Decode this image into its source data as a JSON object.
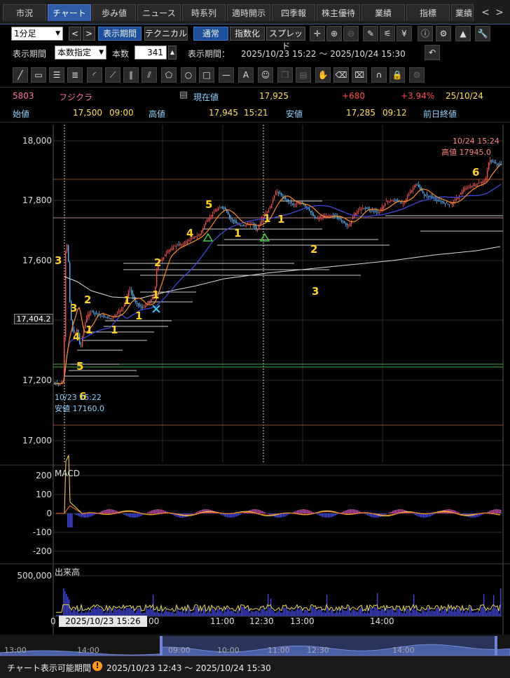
{
  "tabs": [
    "市況",
    "チャート",
    "歩み値",
    "ニュース",
    "時系列",
    "適時開示",
    "四季報",
    "株主優待",
    "業績",
    "指標",
    "業績"
  ],
  "tab_nav": {
    "prev": "<",
    "next": ">"
  },
  "toolbar": {
    "interval": "1分足",
    "prev": "<",
    "next": ">",
    "display_period_btn": "表示期間",
    "technical_btn": "テクニカル",
    "normal_btn": "通常",
    "index_btn": "指数化",
    "spread_btn": "スプレッド"
  },
  "period_row": {
    "label": "表示期間",
    "mode": "本数指定",
    "count_label": "本数",
    "count": "341",
    "range_label": "表示期間：",
    "range": "2025/10/23 15:22 ～ 2025/10/24 15:30"
  },
  "quote": {
    "code": "5803",
    "name": "フジクラ",
    "current_label": "現在値",
    "current": "17,925",
    "change": "+680",
    "change_pct": "+3.94%",
    "date": "25/10/24",
    "open_label": "始値",
    "open": "17,500",
    "open_time": "09:00",
    "high_label": "高値",
    "high": "17,945",
    "high_time": "15:21",
    "low_label": "安値",
    "low": "17,285",
    "low_time": "09:12",
    "prev_close_label": "前日終値"
  },
  "price_axis": [
    "18,000",
    "17,800",
    "17,600",
    "17,404.2",
    "17,200",
    "17,000"
  ],
  "annotations": {
    "high_time": "10/24 15:24",
    "high_text": "高値 17945.0",
    "low_time": "10/23 15:22",
    "low_text": "安値 17160.0"
  },
  "count_labels": [
    "3",
    "3",
    "2",
    "4",
    "1",
    "1",
    "1",
    "1",
    "1",
    "5",
    "6",
    "2",
    "4",
    "5",
    "1",
    "1",
    "1",
    "2",
    "3",
    "6"
  ],
  "macd": {
    "title": "MACD",
    "axis": [
      "200",
      "100",
      "0",
      "-100",
      "-200"
    ]
  },
  "volume": {
    "title": "出来高",
    "axis": [
      "500,000"
    ]
  },
  "time_axis": [
    "11:00",
    "12:30",
    "13:00",
    "14:00",
    "00"
  ],
  "time_axis_first": "0",
  "cursor_time": "2025/10/23 15:26",
  "nav_axis": [
    "13:00",
    "14:00",
    "09:00",
    "10:00",
    "11:00",
    "12:30",
    "14:00"
  ],
  "footer": {
    "label": "チャート表示可能期間",
    "range": "2025/10/23 12:43 ～ 2025/10/24 15:30"
  },
  "colors": {
    "up": "#ff4d4d",
    "down": "#4db8ff",
    "ma_short": "#ff8c1a",
    "ma_mid": "#3f48d8",
    "ma_long": "#dddddd",
    "count": "#ffd21f",
    "tab_active": "#2f5da8"
  }
}
